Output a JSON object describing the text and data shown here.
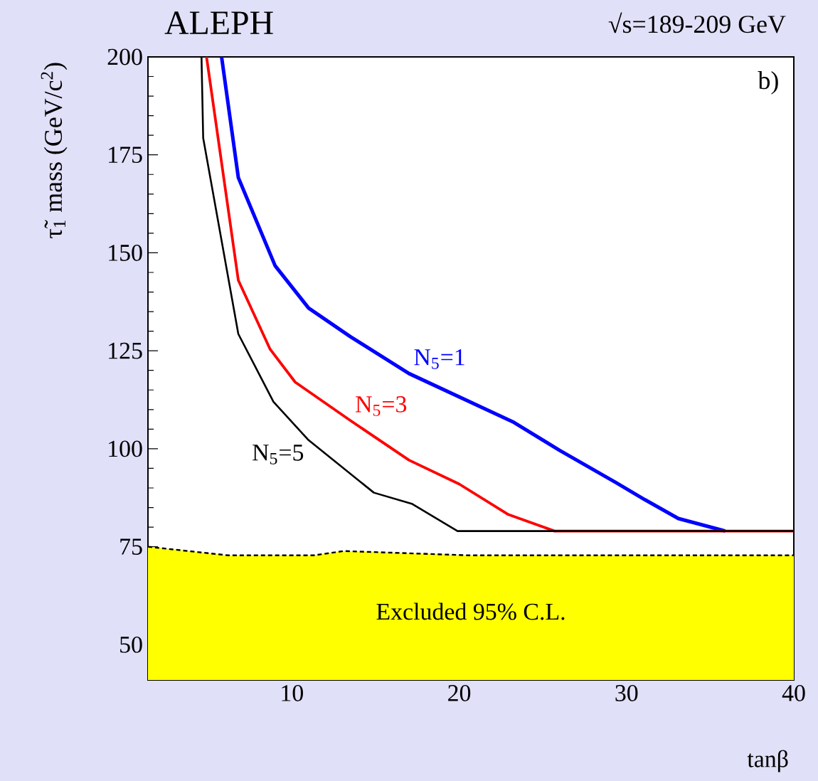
{
  "chart_data": {
    "type": "line",
    "title": "ALEPH",
    "subtitle": "√s=189-209 GeV",
    "xlabel": "tanβ",
    "ylabel": "τ̃$_{1}$ mass (GeV/c$^{2}$)",
    "xlim": [
      1.4,
      40
    ],
    "ylim": [
      41,
      200
    ],
    "xticks": [
      10,
      20,
      30,
      40
    ],
    "yticks": [
      50,
      75,
      100,
      125,
      150,
      175,
      200
    ],
    "grid": false,
    "series": [
      {
        "name": "N$_{5}$=1",
        "color": "#0000ff",
        "x": [
          5.8,
          6.8,
          9.0,
          11.0,
          13.5,
          17.0,
          23.2,
          26.0,
          29.4,
          31.1,
          33.1,
          35.9
        ],
        "values": [
          200,
          169.2,
          146.7,
          135.9,
          128.6,
          119.2,
          106.9,
          99.6,
          91.3,
          87,
          82.2,
          79
        ]
      },
      {
        "name": "N$_{5}$=3",
        "color": "#ff0000",
        "x": [
          4.9,
          6.8,
          8.7,
          10.2,
          13.5,
          17.0,
          20.0,
          22.9,
          25.7,
          40
        ],
        "values": [
          200,
          143,
          125.4,
          117,
          107.2,
          97.1,
          91,
          83.3,
          79,
          79
        ]
      },
      {
        "name": "N$_{5}$=5",
        "color": "#000000",
        "x": [
          4.6,
          4.7,
          6.8,
          8.9,
          11.0,
          14.9,
          17.2,
          19.9,
          40
        ],
        "values": [
          200,
          179.3,
          129.3,
          112,
          102.2,
          88.8,
          85.9,
          79,
          79
        ]
      },
      {
        "type": "area",
        "color": "#ffff00",
        "line_style": "dashed",
        "x": [
          1.4,
          6.2,
          11.3,
          13.1,
          20.6,
          40
        ],
        "values": [
          75,
          72.8,
          72.8,
          73.9,
          72.8,
          72.8
        ]
      }
    ],
    "annotations": [
      "b)",
      "Excluded 95% C.L."
    ]
  }
}
